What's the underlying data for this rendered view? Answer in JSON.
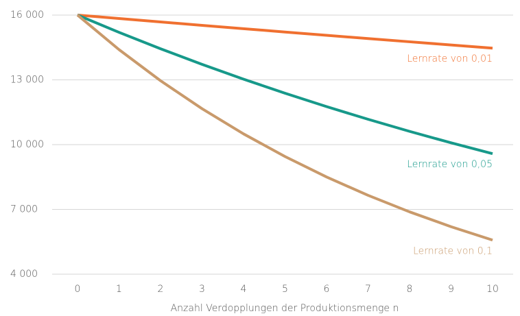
{
  "chart_data": {
    "type": "line",
    "x_label": "Anzahl Verdopplungen der Produktionsmenge n",
    "x": [
      0,
      1,
      2,
      3,
      4,
      5,
      6,
      7,
      8,
      9,
      10
    ],
    "xlim": [
      0,
      10
    ],
    "xticks": [
      0,
      1,
      2,
      3,
      4,
      5,
      6,
      7,
      8,
      9,
      10
    ],
    "ylim": [
      4000,
      16000
    ],
    "yticks": [
      {
        "value": 4000,
        "label": "4 000"
      },
      {
        "value": 7000,
        "label": "7 000"
      },
      {
        "value": 10000,
        "label": "10 000"
      },
      {
        "value": 13000,
        "label": "13 000"
      },
      {
        "value": 16000,
        "label": "16 000"
      }
    ],
    "grid": true,
    "series": [
      {
        "name": "Lernrate von 0,01",
        "color": "#f07030",
        "values": [
          16000,
          15840,
          15682,
          15525,
          15370,
          15216,
          15064,
          14913,
          14764,
          14616,
          14470
        ]
      },
      {
        "name": "Lernrate von 0,05",
        "color": "#17998a",
        "values": [
          16000,
          15200,
          14440,
          13718,
          13032,
          12381,
          11762,
          11174,
          10615,
          10084,
          9580
        ]
      },
      {
        "name": "Lernrate von 0,1",
        "color": "#c99a6b",
        "values": [
          16000,
          14400,
          12960,
          11664,
          10498,
          9448,
          8503,
          7653,
          6887,
          6199,
          5579
        ]
      }
    ]
  }
}
